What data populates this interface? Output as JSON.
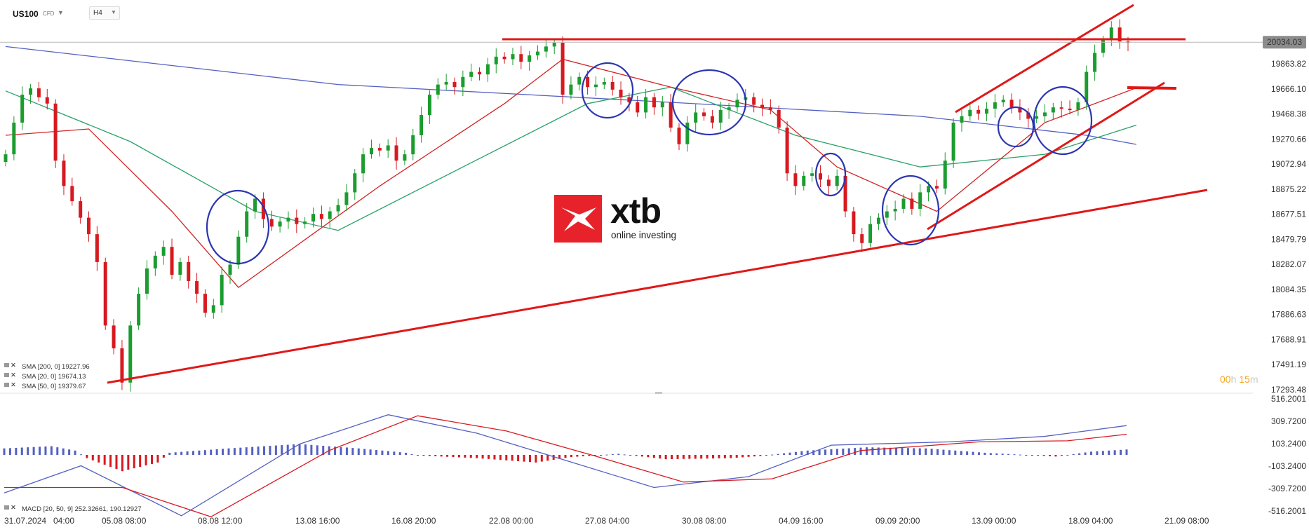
{
  "header": {
    "symbol": "US100",
    "symbol_sub": "CFD",
    "timeframe": "H4"
  },
  "price_axis": [
    "19863.82",
    "19666.10",
    "19468.38",
    "19270.66",
    "19072.94",
    "18875.22",
    "18677.51",
    "18479.79",
    "18282.07",
    "18084.35",
    "17886.63",
    "17688.91",
    "17491.19",
    "17293.48"
  ],
  "current_price": "20034.03",
  "macd_axis": [
    "516.2001",
    "309.7200",
    "103.2400",
    "-103.2400",
    "-309.7200",
    "-516.2001"
  ],
  "time_axis": [
    "31.07.2024",
    "04:00",
    "05.08 08:00",
    "08.08 12:00",
    "13.08 16:00",
    "16.08 20:00",
    "22.08 00:00",
    "27.08 04:00",
    "30.08 08:00",
    "04.09 16:00",
    "09.09 20:00",
    "13.09 00:00",
    "18.09 04:00",
    "21.09 08:00"
  ],
  "legend": [
    "SMA [200, 0] 19227.96",
    "SMA [20, 0] 19674.13",
    "SMA [50, 0] 19379.67"
  ],
  "macd_legend": "MACD [20, 50, 9] 252.32661, 190.12927",
  "timer": {
    "h": "00",
    "h_unit": "h",
    "m": "15",
    "m_unit": "m"
  },
  "logo": {
    "word": "xtb",
    "tagline": "online investing"
  },
  "colors": {
    "bull": "#1b9c2f",
    "bear": "#d71920",
    "sma200": "#5460c0",
    "sma50": "#2aa16a",
    "sma20": "#d12424",
    "annot": "#e01818",
    "circle": "#2b35b0"
  },
  "chart_data": {
    "type": "candlestick",
    "instrument": "US100",
    "timeframe": "H4",
    "ylim": [
      17250,
      20350
    ],
    "closes": [
      19150,
      19400,
      19620,
      19670,
      19600,
      19550,
      19100,
      18900,
      18780,
      18650,
      18520,
      18300,
      17800,
      17620,
      17350,
      17800,
      18050,
      18250,
      18350,
      18420,
      18200,
      18300,
      18150,
      18050,
      17900,
      17960,
      18200,
      18280,
      18500,
      18700,
      18800,
      18640,
      18580,
      18620,
      18650,
      18600,
      18620,
      18680,
      18640,
      18700,
      18750,
      18850,
      19000,
      19150,
      19200,
      19180,
      19220,
      19100,
      19150,
      19300,
      19460,
      19620,
      19700,
      19720,
      19680,
      19760,
      19800,
      19780,
      19860,
      19920,
      19900,
      19940,
      19880,
      19930,
      19960,
      20000,
      20030,
      19620,
      19700,
      19760,
      19680,
      19700,
      19720,
      19660,
      19600,
      19560,
      19480,
      19600,
      19520,
      19560,
      19360,
      19230,
      19400,
      19480,
      19450,
      19400,
      19500,
      19520,
      19580,
      19600,
      19540,
      19520,
      19500,
      19360,
      19000,
      18900,
      18980,
      19000,
      18950,
      18900,
      18980,
      18700,
      18520,
      18450,
      18600,
      18650,
      18700,
      18720,
      18800,
      18720,
      18850,
      18900,
      18880,
      19100,
      19400,
      19450,
      19500,
      19470,
      19510,
      19560,
      19580,
      19520,
      19480,
      19430,
      19450,
      19480,
      19520,
      19510,
      19500,
      19560,
      19800,
      19950,
      20050,
      20150,
      20040,
      20034
    ],
    "sma200": [
      {
        "x": 0,
        "y": 20000
      },
      {
        "x": 40,
        "y": 19700
      },
      {
        "x": 80,
        "y": 19560
      },
      {
        "x": 110,
        "y": 19450
      },
      {
        "x": 130,
        "y": 19300
      },
      {
        "x": 136,
        "y": 19228
      }
    ],
    "sma50": [
      {
        "x": 0,
        "y": 19650
      },
      {
        "x": 15,
        "y": 19250
      },
      {
        "x": 30,
        "y": 18700
      },
      {
        "x": 40,
        "y": 18550
      },
      {
        "x": 55,
        "y": 19050
      },
      {
        "x": 70,
        "y": 19550
      },
      {
        "x": 80,
        "y": 19680
      },
      {
        "x": 95,
        "y": 19300
      },
      {
        "x": 110,
        "y": 19050
      },
      {
        "x": 125,
        "y": 19150
      },
      {
        "x": 136,
        "y": 19380
      }
    ],
    "sma20": [
      {
        "x": 0,
        "y": 19300
      },
      {
        "x": 10,
        "y": 19350
      },
      {
        "x": 20,
        "y": 18700
      },
      {
        "x": 28,
        "y": 18100
      },
      {
        "x": 45,
        "y": 18900
      },
      {
        "x": 60,
        "y": 19550
      },
      {
        "x": 67,
        "y": 19900
      },
      {
        "x": 80,
        "y": 19680
      },
      {
        "x": 92,
        "y": 19500
      },
      {
        "x": 100,
        "y": 19050
      },
      {
        "x": 112,
        "y": 18700
      },
      {
        "x": 125,
        "y": 19400
      },
      {
        "x": 136,
        "y": 19674
      }
    ],
    "macd_ylim": [
      -516.2,
      516.2
    ],
    "macd_line": [
      {
        "x": 0,
        "y": -350
      },
      {
        "x": 13,
        "y": -100
      },
      {
        "x": 30,
        "y": -560
      },
      {
        "x": 50,
        "y": 100
      },
      {
        "x": 65,
        "y": 370
      },
      {
        "x": 80,
        "y": 200
      },
      {
        "x": 95,
        "y": -50
      },
      {
        "x": 110,
        "y": -300
      },
      {
        "x": 126,
        "y": -200
      },
      {
        "x": 140,
        "y": 90
      },
      {
        "x": 160,
        "y": 120
      },
      {
        "x": 176,
        "y": 170
      },
      {
        "x": 190,
        "y": 270
      }
    ],
    "macd_signal": [
      {
        "x": 0,
        "y": -300
      },
      {
        "x": 20,
        "y": -300
      },
      {
        "x": 35,
        "y": -570
      },
      {
        "x": 55,
        "y": 40
      },
      {
        "x": 70,
        "y": 360
      },
      {
        "x": 85,
        "y": 220
      },
      {
        "x": 100,
        "y": -10
      },
      {
        "x": 115,
        "y": -250
      },
      {
        "x": 130,
        "y": -220
      },
      {
        "x": 145,
        "y": 40
      },
      {
        "x": 165,
        "y": 120
      },
      {
        "x": 180,
        "y": 130
      },
      {
        "x": 190,
        "y": 190
      }
    ],
    "macd_hist": [
      {
        "x": 0,
        "y": 60
      },
      {
        "x": 8,
        "y": 80
      },
      {
        "x": 12,
        "y": 40
      },
      {
        "x": 14,
        "y": -30
      },
      {
        "x": 20,
        "y": -150
      },
      {
        "x": 26,
        "y": -70
      },
      {
        "x": 28,
        "y": 20
      },
      {
        "x": 38,
        "y": 60
      },
      {
        "x": 50,
        "y": 100
      },
      {
        "x": 60,
        "y": 60
      },
      {
        "x": 68,
        "y": 20
      },
      {
        "x": 70,
        "y": -5
      },
      {
        "x": 80,
        "y": -30
      },
      {
        "x": 90,
        "y": -70
      },
      {
        "x": 96,
        "y": -20
      },
      {
        "x": 104,
        "y": 10
      },
      {
        "x": 112,
        "y": -40
      },
      {
        "x": 123,
        "y": -30
      },
      {
        "x": 128,
        "y": -10
      },
      {
        "x": 136,
        "y": 40
      },
      {
        "x": 146,
        "y": 70
      },
      {
        "x": 156,
        "y": 60
      },
      {
        "x": 166,
        "y": 20
      },
      {
        "x": 178,
        "y": -15
      },
      {
        "x": 184,
        "y": 30
      },
      {
        "x": 190,
        "y": 50
      }
    ]
  }
}
